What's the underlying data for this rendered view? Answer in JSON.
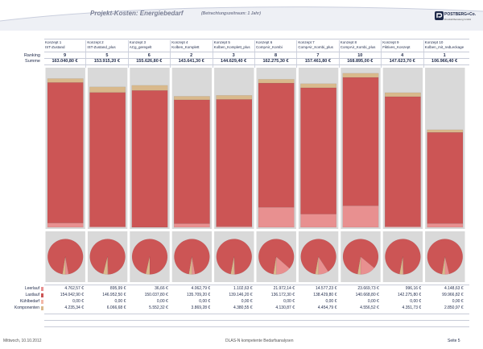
{
  "header": {
    "title": "Projekt-Kosten: Energiebedarf",
    "subtitle": "(Betrachtungszeitraum: 1 Jahr)",
    "logo_text": "POSTBERG+Co.",
    "logo_sub": "Druckluftberatung GmbH"
  },
  "row_labels": {
    "ranking": "Ranking",
    "summe": "Summe"
  },
  "colors": {
    "leerlauf": "#e89090",
    "lastlauf": "#cc5555",
    "kuehlbedarf": "#f2b8a8",
    "komponenten": "#d9b98c",
    "panel": "#d9d9d9"
  },
  "chart_data": {
    "type": "bar",
    "stacked": true,
    "categories": [
      "Konzept 1",
      "Konzept 2",
      "Konzept 3",
      "Konzept 4",
      "Konzept 5",
      "Konzept 6",
      "Konzept 7",
      "Konzept 8",
      "Konzept 9",
      "Konzept 10"
    ],
    "concept_names": [
      "IST-Zustand",
      "IST-Zustand_plus",
      "ACg_geregelt",
      "Kolben_Komplett",
      "Kolben_Komplett_plus",
      "CompAir_Kombi",
      "CompAir_Kombi_plus",
      "CompAir_Kombi_plus",
      "Fiktives_Konzept",
      "Kolben_mit_redLeckage"
    ],
    "ranking": [
      "9",
      "5",
      "6",
      "2",
      "3",
      "8",
      "7",
      "10",
      "4",
      "1"
    ],
    "summe": [
      "163.040,80 €",
      "153.915,20 €",
      "155.626,80 €",
      "143.641,30 €",
      "144.629,40 €",
      "162.275,30 €",
      "157.461,80 €",
      "168.895,00 €",
      "147.623,70 €",
      "106.966,40 €"
    ],
    "ylim": [
      0,
      175000
    ],
    "series": [
      {
        "name": "Leerlauf",
        "values": [
          4762.57,
          895.99,
          36.66,
          4062.79,
          1102.63,
          21972.14,
          14577.23,
          23669.73,
          996.16,
          4148.63
        ],
        "labels": [
          "4.762,57 €",
          "895,99 €",
          "36,66 €",
          "4.062,79 €",
          "1.102,63 €",
          "21.972,14 €",
          "14.577,23 €",
          "23.669,73 €",
          "996,16 €",
          "4.148,63 €"
        ]
      },
      {
        "name": "Lastlauf",
        "values": [
          154042.9,
          146952.5,
          150037.8,
          135709.2,
          139146.2,
          136172.3,
          138429.8,
          140668.8,
          142275.8,
          99966.82
        ],
        "labels": [
          "154.042,90 €",
          "146.952,50 €",
          "150.037,80 €",
          "135.709,20 €",
          "139.146,20 €",
          "136.172,30 €",
          "138.429,80 €",
          "140.668,80 €",
          "142.275,80 €",
          "99.966,82 €"
        ]
      },
      {
        "name": "Kühlbedarf",
        "values": [
          0,
          0,
          0,
          0,
          0,
          0,
          0,
          0,
          0,
          0
        ],
        "labels": [
          "0,00 €",
          "0,00 €",
          "0,00 €",
          "0,00 €",
          "0,00 €",
          "0,00 €",
          "0,00 €",
          "0,00 €",
          "0,00 €",
          "0,00 €"
        ]
      },
      {
        "name": "Komponenten",
        "values": [
          4235.34,
          6066.68,
          5552.32,
          3869.28,
          4380.55,
          4130.87,
          4454.79,
          4556.52,
          4351.73,
          2850.97
        ],
        "labels": [
          "4.235,34 €",
          "6.066,68 €",
          "5.552,32 €",
          "3.869,28 €",
          "4.380,55 €",
          "4.130,87 €",
          "4.454,79 €",
          "4.556,52 €",
          "4.351,73 €",
          "2.850,97 €"
        ]
      }
    ]
  },
  "footer": {
    "date": "Mittwoch, 10.10.2012",
    "center": "DLAS-N kompetente Bedarfsanalysen",
    "page": "Seite 5"
  }
}
